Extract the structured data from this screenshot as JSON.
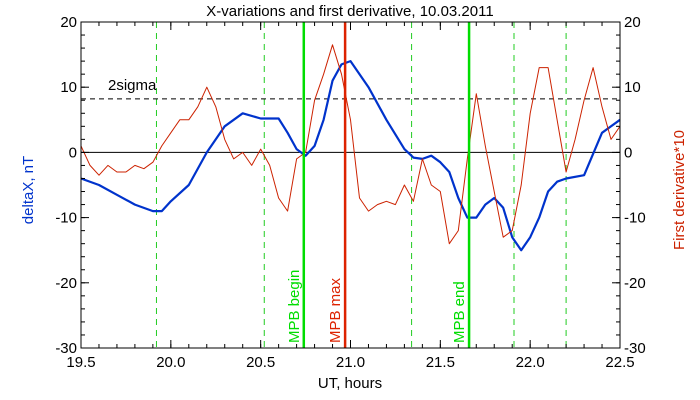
{
  "chart_data": {
    "type": "line",
    "title": "X-variations and first derivative, 10.03.2011",
    "xlabel": "UT, hours",
    "ylabel_left": "deltaX, nT",
    "ylabel_right": "First derivative*10",
    "xlim": [
      19.5,
      22.5
    ],
    "ylim_left": [
      -30,
      20
    ],
    "ylim_right": [
      -30,
      20
    ],
    "x_ticks": [
      "19.5",
      "20.0",
      "20.5",
      "21.0",
      "21.5",
      "22.0",
      "22.5"
    ],
    "y_ticks_left": [
      "20",
      "10",
      "0",
      "-10",
      "-20",
      "-30"
    ],
    "y_ticks_right": [
      "20",
      "10",
      "0",
      "-10",
      "-20",
      "-30"
    ],
    "threshold": {
      "label": "2sigma",
      "value": 8.2
    },
    "zero_line": 0,
    "colors": {
      "deltaX": "#0033cc",
      "derivative": "#cc2200",
      "mpb": "#00dd00",
      "mpb_max": "#dd2200",
      "dashed": "#22cc22"
    },
    "green_dashed_x": [
      19.92,
      20.52,
      21.34,
      21.91,
      22.2
    ],
    "markers": [
      {
        "x": 20.74,
        "label": "MPB begin",
        "color": "#00dd00"
      },
      {
        "x": 20.97,
        "label": "MPB max",
        "color": "#dd2200"
      },
      {
        "x": 21.66,
        "label": "MPB end",
        "color": "#00dd00"
      }
    ],
    "series": [
      {
        "name": "deltaX",
        "color": "#0033cc",
        "axis": "left",
        "x": [
          19.5,
          19.6,
          19.7,
          19.8,
          19.9,
          19.95,
          20.0,
          20.1,
          20.2,
          20.3,
          20.4,
          20.5,
          20.6,
          20.65,
          20.7,
          20.75,
          20.8,
          20.85,
          20.9,
          20.95,
          21.0,
          21.1,
          21.2,
          21.3,
          21.35,
          21.4,
          21.45,
          21.5,
          21.55,
          21.6,
          21.65,
          21.7,
          21.75,
          21.8,
          21.85,
          21.9,
          21.95,
          22.0,
          22.05,
          22.1,
          22.15,
          22.2,
          22.3,
          22.4,
          22.5
        ],
        "values": [
          -4,
          -5,
          -6.5,
          -8,
          -9,
          -9,
          -7.5,
          -5,
          0,
          4,
          6,
          5.2,
          5.2,
          3,
          0.5,
          -0.5,
          1,
          5,
          11,
          13.5,
          14,
          10,
          5,
          0.5,
          -0.8,
          -1,
          -0.5,
          -1.5,
          -3,
          -7,
          -10,
          -10,
          -8,
          -7,
          -8.5,
          -13,
          -15,
          -13,
          -10,
          -6,
          -4.5,
          -4,
          -3.5,
          3,
          5
        ]
      },
      {
        "name": "derivative",
        "color": "#cc2200",
        "axis": "right",
        "x": [
          19.5,
          19.55,
          19.6,
          19.65,
          19.7,
          19.75,
          19.8,
          19.85,
          19.9,
          19.95,
          20.0,
          20.05,
          20.1,
          20.15,
          20.2,
          20.25,
          20.3,
          20.35,
          20.4,
          20.45,
          20.5,
          20.55,
          20.6,
          20.65,
          20.7,
          20.75,
          20.8,
          20.85,
          20.9,
          20.95,
          21.0,
          21.05,
          21.1,
          21.15,
          21.2,
          21.25,
          21.3,
          21.35,
          21.4,
          21.45,
          21.5,
          21.55,
          21.6,
          21.65,
          21.7,
          21.75,
          21.8,
          21.85,
          21.9,
          21.95,
          22.0,
          22.05,
          22.1,
          22.15,
          22.2,
          22.25,
          22.3,
          22.35,
          22.4,
          22.45,
          22.5
        ],
        "values": [
          1,
          -2,
          -3.5,
          -2,
          -3,
          -3,
          -2,
          -2.5,
          -1.5,
          1,
          3,
          5,
          5,
          7,
          10,
          7,
          2,
          -1,
          0,
          -2,
          0.5,
          -2,
          -7,
          -9,
          -1,
          0,
          8,
          12,
          16.5,
          12,
          5,
          -7,
          -9,
          -8,
          -7.5,
          -8,
          -5,
          -7.5,
          -1,
          -5,
          -6,
          -14,
          -12,
          -1,
          9,
          1,
          -6,
          -13,
          -12,
          -5,
          6,
          13,
          13,
          5,
          -3,
          2,
          8,
          13,
          7,
          2,
          4
        ]
      }
    ]
  }
}
